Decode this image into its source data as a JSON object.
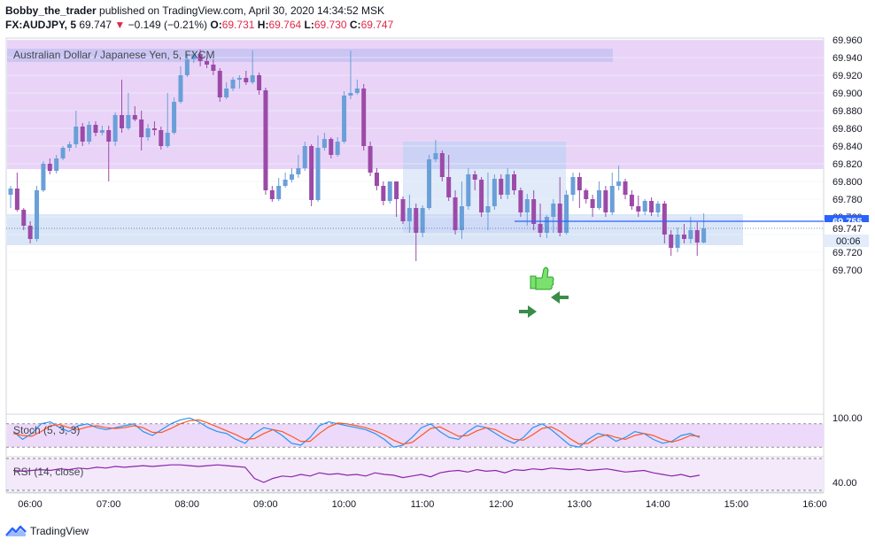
{
  "header": {
    "user": "Bobby_the_trader",
    "published": "published on TradingView.com, April 30, 2020 14:34:52 MSK",
    "symbol": "FX:AUDJPY, 5",
    "last": "69.747",
    "change": "−0.149 (−0.21%)",
    "open_label": "O:",
    "open": "69.731",
    "high_label": "H:",
    "high": "69.764",
    "low_label": "L:",
    "low": "69.730",
    "close_label": "C:",
    "close": "69.747"
  },
  "footer": {
    "brand": "TradingView"
  },
  "colors": {
    "up": "#6a9fd8",
    "down": "#9c4aa8",
    "resistance_zone": "#e9d4f7",
    "resistance_band": "#c9c3f2",
    "support_zone": "#dae6f7",
    "box": "#c9cff4",
    "line": "#2962ff",
    "stoch_k": "#2196f3",
    "stoch_d": "#ff5722",
    "rsi": "#8e24aa"
  },
  "chart_data": [
    {
      "type": "candlestick",
      "title": "Australian Dollar / Japanese Yen, 5, FXCM",
      "x_ticks": [
        "06:00",
        "07:00",
        "08:00",
        "09:00",
        "10:00",
        "11:00",
        "12:00",
        "13:00",
        "14:00",
        "15:00",
        "16:00"
      ],
      "y_ticks": [
        "69.960",
        "69.940",
        "69.920",
        "69.900",
        "69.880",
        "69.860",
        "69.840",
        "69.820",
        "69.800",
        "69.780",
        "69.760",
        "69.740",
        "69.720",
        "69.700"
      ],
      "price_labels": [
        "69.755",
        "69.747"
      ],
      "countdown": "00:06",
      "ylim": [
        69.7,
        69.96
      ],
      "candles": [
        [
          69.785,
          69.792,
          69.77,
          69.795
        ],
        [
          69.792,
          69.768,
          69.766,
          69.81
        ],
        [
          69.768,
          69.75,
          69.745,
          69.77
        ],
        [
          69.75,
          69.735,
          69.73,
          69.755
        ],
        [
          69.735,
          69.79,
          69.732,
          69.795
        ],
        [
          69.79,
          69.82,
          69.788,
          69.823
        ],
        [
          69.82,
          69.812,
          69.808,
          69.826
        ],
        [
          69.812,
          69.826,
          69.809,
          69.83
        ],
        [
          69.826,
          69.838,
          69.824,
          69.84
        ],
        [
          69.838,
          69.842,
          69.834,
          69.845
        ],
        [
          69.842,
          69.862,
          69.838,
          69.88
        ],
        [
          69.862,
          69.845,
          69.84,
          69.866
        ],
        [
          69.845,
          69.864,
          69.842,
          69.868
        ],
        [
          69.864,
          69.855,
          69.851,
          69.868
        ],
        [
          69.855,
          69.858,
          69.852,
          69.863
        ],
        [
          69.858,
          69.845,
          69.8,
          69.863
        ],
        [
          69.845,
          69.875,
          69.84,
          69.878
        ],
        [
          69.875,
          69.86,
          69.855,
          69.915
        ],
        [
          69.86,
          69.875,
          69.858,
          69.9
        ],
        [
          69.875,
          69.87,
          69.868,
          69.885
        ],
        [
          69.87,
          69.85,
          69.835,
          69.88
        ],
        [
          69.85,
          69.86,
          69.846,
          69.865
        ],
        [
          69.86,
          69.858,
          69.852,
          69.868
        ],
        [
          69.858,
          69.84,
          69.836,
          69.862
        ],
        [
          69.84,
          69.855,
          69.838,
          69.9
        ],
        [
          69.855,
          69.89,
          69.853,
          69.895
        ],
        [
          69.89,
          69.92,
          69.888,
          69.93
        ],
        [
          69.92,
          69.938,
          69.918,
          69.945
        ],
        [
          69.938,
          69.944,
          69.934,
          69.948
        ],
        [
          69.944,
          69.936,
          69.93,
          69.949
        ],
        [
          69.936,
          69.932,
          69.928,
          69.94
        ],
        [
          69.932,
          69.925,
          69.92,
          69.938
        ],
        [
          69.925,
          69.895,
          69.89,
          69.928
        ],
        [
          69.895,
          69.905,
          69.893,
          69.912
        ],
        [
          69.905,
          69.915,
          69.902,
          69.918
        ],
        [
          69.915,
          69.917,
          69.905,
          69.92
        ],
        [
          69.917,
          69.912,
          69.909,
          69.925
        ],
        [
          69.912,
          69.92,
          69.91,
          69.948
        ],
        [
          69.92,
          69.903,
          69.898,
          69.923
        ],
        [
          69.903,
          69.79,
          69.785,
          69.906
        ],
        [
          69.79,
          69.78,
          69.777,
          69.795
        ],
        [
          69.78,
          69.795,
          69.778,
          69.804
        ],
        [
          69.795,
          69.802,
          69.793,
          69.81
        ],
        [
          69.802,
          69.808,
          69.799,
          69.815
        ],
        [
          69.808,
          69.815,
          69.804,
          69.83
        ],
        [
          69.815,
          69.84,
          69.812,
          69.845
        ],
        [
          69.84,
          69.779,
          69.772,
          69.842
        ],
        [
          69.779,
          69.838,
          69.777,
          69.852
        ],
        [
          69.838,
          69.848,
          69.835,
          69.855
        ],
        [
          69.848,
          69.83,
          69.826,
          69.85
        ],
        [
          69.83,
          69.845,
          69.828,
          69.85
        ],
        [
          69.845,
          69.897,
          69.843,
          69.902
        ],
        [
          69.897,
          69.9,
          69.893,
          69.948
        ],
        [
          69.9,
          69.905,
          69.898,
          69.915
        ],
        [
          69.905,
          69.84,
          69.835,
          69.91
        ],
        [
          69.84,
          69.81,
          69.806,
          69.845
        ],
        [
          69.81,
          69.795,
          69.79,
          69.815
        ],
        [
          69.795,
          69.778,
          69.773,
          69.8
        ],
        [
          69.778,
          69.8,
          69.775,
          69.8
        ],
        [
          69.8,
          69.78,
          69.76,
          69.8
        ],
        [
          69.78,
          69.755,
          69.752,
          69.783
        ],
        [
          69.755,
          69.77,
          69.742,
          69.785
        ],
        [
          69.77,
          69.742,
          69.71,
          69.775
        ],
        [
          69.742,
          69.77,
          69.737,
          69.773
        ],
        [
          69.77,
          69.825,
          69.768,
          69.83
        ],
        [
          69.825,
          69.832,
          69.822,
          69.847
        ],
        [
          69.832,
          69.805,
          69.8,
          69.835
        ],
        [
          69.805,
          69.782,
          69.778,
          69.83
        ],
        [
          69.782,
          69.745,
          69.74,
          69.79
        ],
        [
          69.745,
          69.772,
          69.735,
          69.8
        ],
        [
          69.772,
          69.808,
          69.768,
          69.815
        ],
        [
          69.808,
          69.802,
          69.79,
          69.812
        ],
        [
          69.802,
          69.765,
          69.76,
          69.805
        ],
        [
          69.765,
          69.772,
          69.745,
          69.81
        ],
        [
          69.772,
          69.803,
          69.768,
          69.808
        ],
        [
          69.803,
          69.785,
          69.78,
          69.808
        ],
        [
          69.785,
          69.808,
          69.78,
          69.815
        ],
        [
          69.808,
          69.79,
          69.785,
          69.812
        ],
        [
          69.79,
          69.765,
          69.76,
          69.793
        ],
        [
          69.765,
          69.78,
          69.75,
          69.786
        ],
        [
          69.78,
          69.752,
          69.745,
          69.79
        ],
        [
          69.752,
          69.742,
          69.737,
          69.775
        ],
        [
          69.742,
          69.76,
          69.736,
          69.762
        ],
        [
          69.76,
          69.775,
          69.742,
          69.78
        ],
        [
          69.775,
          69.742,
          69.738,
          69.805
        ],
        [
          69.742,
          69.785,
          69.74,
          69.79
        ],
        [
          69.785,
          69.805,
          69.778,
          69.81
        ],
        [
          69.805,
          69.79,
          69.77,
          69.81
        ],
        [
          69.79,
          69.78,
          69.775,
          69.792
        ],
        [
          69.78,
          69.77,
          69.76,
          69.785
        ],
        [
          69.77,
          69.79,
          69.768,
          69.8
        ],
        [
          69.79,
          69.765,
          69.76,
          69.795
        ],
        [
          69.765,
          69.795,
          69.762,
          69.81
        ],
        [
          69.795,
          69.8,
          69.79,
          69.818
        ],
        [
          69.8,
          69.785,
          69.78,
          69.803
        ],
        [
          69.785,
          69.772,
          69.768,
          69.79
        ],
        [
          69.772,
          69.766,
          69.76,
          69.784
        ],
        [
          69.766,
          69.778,
          69.762,
          69.78
        ],
        [
          69.778,
          69.765,
          69.761,
          69.782
        ],
        [
          69.765,
          69.775,
          69.76,
          69.778
        ],
        [
          69.775,
          69.74,
          69.73,
          69.778
        ],
        [
          69.74,
          69.725,
          69.716,
          69.745
        ],
        [
          69.725,
          69.74,
          69.72,
          69.748
        ],
        [
          69.74,
          69.735,
          69.73,
          69.752
        ],
        [
          69.735,
          69.745,
          69.73,
          69.76
        ],
        [
          69.745,
          69.731,
          69.716,
          69.754
        ],
        [
          69.731,
          69.747,
          69.73,
          69.764
        ]
      ]
    },
    {
      "type": "line",
      "title": "Stoch (5, 3, 3)",
      "y_ticks": [
        "100.00"
      ],
      "series": [
        {
          "values": [
            60,
            40,
            55,
            80,
            85,
            70,
            60,
            75,
            80,
            70,
            65,
            70,
            75,
            80,
            60,
            50,
            65,
            80,
            90,
            95,
            85,
            70,
            60,
            55,
            40,
            30,
            55,
            70,
            65,
            50,
            30,
            25,
            45,
            75,
            85,
            80,
            75,
            70,
            65,
            55,
            40,
            20,
            25,
            45,
            70,
            80,
            60,
            45,
            40,
            60,
            75,
            70,
            55,
            40,
            30,
            45,
            70,
            80,
            65,
            45,
            25,
            20,
            40,
            55,
            50,
            35,
            45,
            60,
            55,
            40,
            30,
            35,
            50,
            55,
            45
          ]
        },
        {
          "values": [
            55,
            50,
            48,
            60,
            75,
            78,
            70,
            65,
            72,
            75,
            70,
            68,
            70,
            75,
            70,
            58,
            58,
            68,
            80,
            88,
            90,
            82,
            72,
            62,
            52,
            40,
            42,
            55,
            65,
            60,
            48,
            35,
            35,
            55,
            72,
            82,
            80,
            75,
            70,
            62,
            52,
            38,
            28,
            32,
            50,
            68,
            72,
            60,
            48,
            50,
            62,
            70,
            65,
            52,
            40,
            38,
            52,
            68,
            72,
            60,
            42,
            28,
            30,
            45,
            52,
            45,
            40,
            50,
            55,
            50,
            40,
            33,
            40,
            50,
            48
          ]
        }
      ]
    },
    {
      "type": "line",
      "title": "RSI (14, close)",
      "y_ticks": [
        "40.00"
      ],
      "series": [
        {
          "values": [
            55,
            54,
            55,
            56,
            55,
            57,
            56,
            58,
            57,
            59,
            58,
            60,
            59,
            60,
            61,
            60,
            61,
            62,
            62,
            61,
            60,
            61,
            62,
            61,
            60,
            59,
            45,
            40,
            45,
            48,
            47,
            50,
            48,
            52,
            50,
            51,
            49,
            50,
            48,
            52,
            50,
            49,
            46,
            48,
            50,
            47,
            52,
            54,
            55,
            53,
            56,
            54,
            55,
            52,
            56,
            55,
            57,
            56,
            58,
            57,
            56,
            57,
            55,
            56,
            57,
            55,
            53,
            54,
            55,
            52,
            50,
            48,
            50,
            47,
            49
          ]
        }
      ]
    }
  ]
}
